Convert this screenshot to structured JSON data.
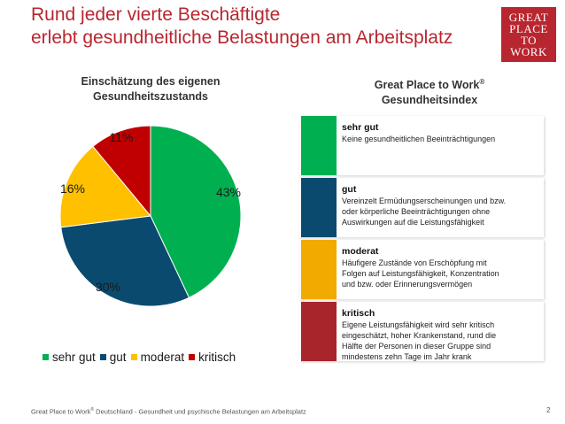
{
  "header": {
    "title_line1": "Rund jeder vierte Beschäftigte",
    "title_line2": "erlebt gesundheitliche Belastungen am Arbeitsplatz"
  },
  "logo": {
    "line1": "GREAT",
    "line2": "PLACE",
    "line3": "TO",
    "line4": "WORK",
    "mark": "®"
  },
  "pie_chart": {
    "title_line1": "Einschätzung des eigenen",
    "title_line2": "Gesundheitszustands"
  },
  "index_panel": {
    "title_line1": "Great Place to Work",
    "title_mark": "®",
    "title_line2": "Gesundheitsindex",
    "rows": [
      {
        "label": "sehr gut",
        "color": "#00b050",
        "desc1": "Keine gesundheitlichen Beeinträchtigungen",
        "desc2": "",
        "desc3": "",
        "desc4": ""
      },
      {
        "label": "gut",
        "color": "#0b4a6f",
        "desc1": "Vereinzelt Ermüdungserscheinungen und bzw.",
        "desc2": "oder körperliche Beeinträchtigungen ohne",
        "desc3": "Auswirkungen auf die Leistungsfähigkeit",
        "desc4": ""
      },
      {
        "label": "moderat",
        "color": "#f0aa00",
        "desc1": "Häufigere Zustände von Erschöpfung mit",
        "desc2": "Folgen auf Leistungsfähigkeit, Konzentration",
        "desc3": "und bzw. oder Erinnerungsvermögen",
        "desc4": ""
      },
      {
        "label": "kritisch",
        "color": "#a8262b",
        "desc1": "Eigene Leistungsfähigkeit wird sehr kritisch",
        "desc2": "eingeschätzt, hoher Krankenstand, rund die",
        "desc3": "Hälfte der Personen in dieser Gruppe sind",
        "desc4": "mindestens zehn Tage im Jahr krank"
      }
    ]
  },
  "chart_data": {
    "type": "pie",
    "title": "Einschätzung des eigenen Gesundheitszustands",
    "categories": [
      "sehr gut",
      "gut",
      "moderat",
      "kritisch"
    ],
    "values": [
      43,
      30,
      16,
      11
    ],
    "value_labels": [
      "43%",
      "30%",
      "16%",
      "11%"
    ],
    "colors": [
      "#00b050",
      "#0b4a6f",
      "#ffc000",
      "#c00000"
    ],
    "legend_position": "bottom"
  },
  "footer": {
    "text_before": "Great Place to Work",
    "mark": "®",
    "text_after": " Deutschland  - Gesundheit und psychische Belastungen am Arbeitsplatz",
    "page_number": "2"
  }
}
